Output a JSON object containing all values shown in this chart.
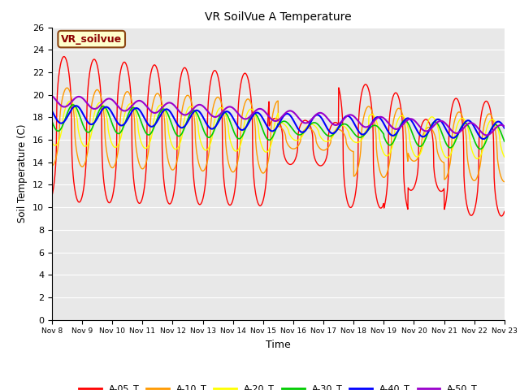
{
  "title": "VR SoilVue A Temperature",
  "xlabel": "Time",
  "ylabel": "Soil Temperature (C)",
  "ylim": [
    0,
    26
  ],
  "yticks": [
    0,
    2,
    4,
    6,
    8,
    10,
    12,
    14,
    16,
    18,
    20,
    22,
    24,
    26
  ],
  "bg_color": "#e8e8e8",
  "annotation_text": "VR_soilvue",
  "series_colors": {
    "A-05_T": "#ff0000",
    "A-10_T": "#ff9900",
    "A-20_T": "#ffff00",
    "A-30_T": "#00cc00",
    "A-40_T": "#0000ff",
    "A-50_T": "#9900cc"
  }
}
